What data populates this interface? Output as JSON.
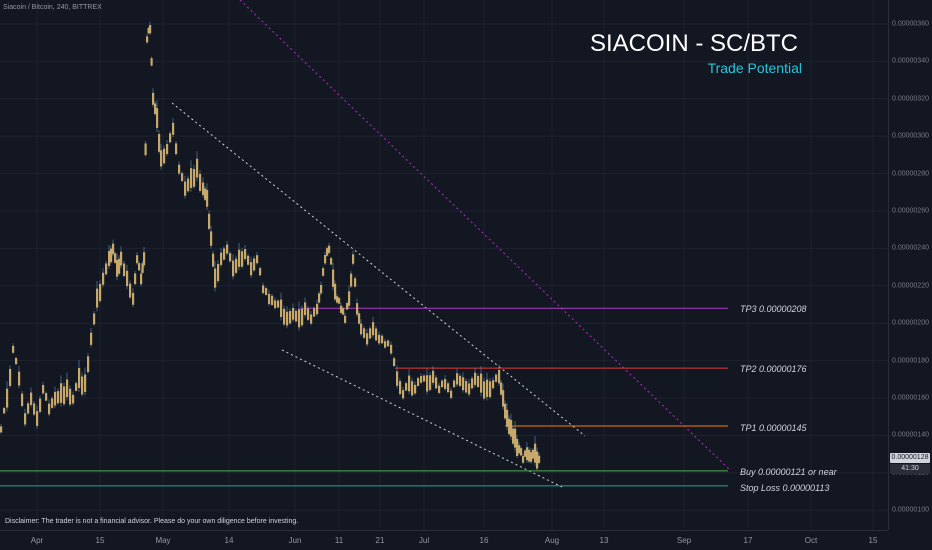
{
  "symbol": "Siacoin / Bitcoin, 240, BITTREX",
  "title": "SIACOIN - SC/BTC",
  "subtitle": "Trade Potential",
  "price_axis": {
    "labels": [
      "0.00000360",
      "0.00000340",
      "0.00000320",
      "0.00000300",
      "0.00000280",
      "0.00000260",
      "0.00000240",
      "0.00000220",
      "0.00000200",
      "0.00000180",
      "0.00000160",
      "0.00000140",
      "0.00000120",
      "0.00000100"
    ],
    "current_price": "0.00000128",
    "countdown": "41:30"
  },
  "time_axis": {
    "labels": [
      "Apr",
      "15",
      "May",
      "14",
      "Jun",
      "11",
      "21",
      "Jul",
      "16",
      "Aug",
      "13",
      "Sep",
      "17",
      "Oct",
      "15"
    ]
  },
  "levels": [
    {
      "label": "TP3 0.00000208",
      "price": 2.08e-06,
      "color": "#b039c7"
    },
    {
      "label": "TP2 0.00000176",
      "price": 1.76e-06,
      "color": "#e53935"
    },
    {
      "label": "TP1 0.00000145",
      "price": 1.45e-06,
      "color": "#f57c00"
    },
    {
      "label": "Buy 0.00000121 or near",
      "price": 1.21e-06,
      "color": "#4caf50"
    },
    {
      "label": "Stop Loss 0.00000113",
      "price": 1.13e-06,
      "color": "#26a69a"
    }
  ],
  "colors": {
    "background": "#131722",
    "candle": "#c8a96a",
    "wick": "#5b8fb9",
    "trendline": "#d1d4dc",
    "diagonal": "#9c27b0"
  },
  "disclaimer": "Disclaimer: The trader is not a financial advisor. Please do your own diligence before investing."
}
